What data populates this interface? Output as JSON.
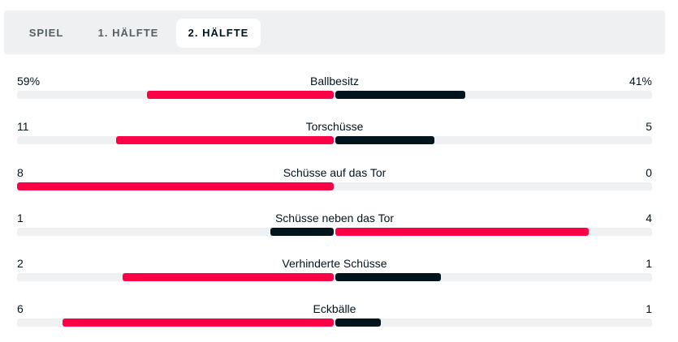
{
  "tabs": [
    {
      "label": "SPIEL",
      "active": false
    },
    {
      "label": "1. HÄLFTE",
      "active": false
    },
    {
      "label": "2. HÄLFTE",
      "active": true
    }
  ],
  "colors": {
    "highlight": "#ff0046",
    "dark": "#00141e",
    "track": "#eef0f1"
  },
  "stats": [
    {
      "category": "Ballbesitz",
      "home": "59%",
      "away": "41%",
      "home_value": 59,
      "away_value": 41,
      "home_highlight": true
    },
    {
      "category": "Torschüsse",
      "home": "11",
      "away": "5",
      "home_value": 11,
      "away_value": 5,
      "home_highlight": true
    },
    {
      "category": "Schüsse auf das Tor",
      "home": "8",
      "away": "0",
      "home_value": 8,
      "away_value": 0,
      "home_highlight": true
    },
    {
      "category": "Schüsse neben das Tor",
      "home": "1",
      "away": "4",
      "home_value": 1,
      "away_value": 4,
      "home_highlight": false
    },
    {
      "category": "Verhinderte Schüsse",
      "home": "2",
      "away": "1",
      "home_value": 2,
      "away_value": 1,
      "home_highlight": true
    },
    {
      "category": "Eckbälle",
      "home": "6",
      "away": "1",
      "home_value": 6,
      "away_value": 1,
      "home_highlight": true
    }
  ]
}
